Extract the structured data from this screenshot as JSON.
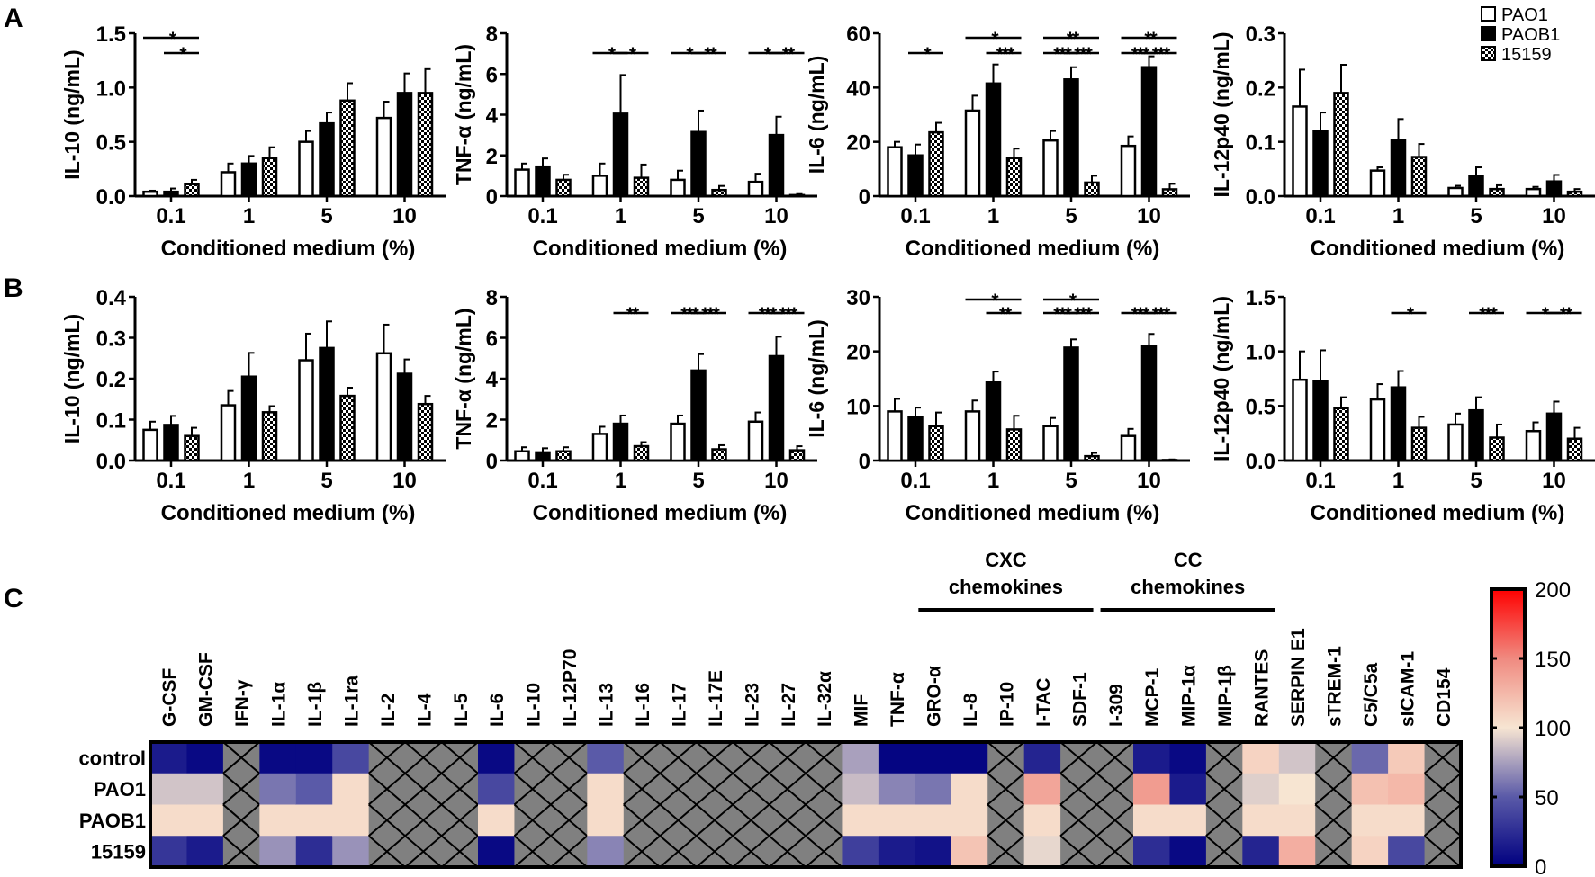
{
  "panels": {
    "a": "A",
    "b": "B",
    "c": "C"
  },
  "legend": [
    {
      "name": "PAO1",
      "fill": "white"
    },
    {
      "name": "PAOB1",
      "fill": "black"
    },
    {
      "name": "15159",
      "fill": "checker"
    }
  ],
  "chart_data": [
    {
      "type": "bar",
      "panel": "A",
      "ylabel": "IL-10 (ng/mL)",
      "xlabel": "Conditioned medium (%)",
      "ylim": [
        0,
        1.5
      ],
      "yticks": [
        "0.0",
        "0.5",
        "1.0",
        "1.5"
      ],
      "categories": [
        "0.1",
        "1",
        "5",
        "10"
      ],
      "series": [
        {
          "name": "PAO1",
          "values": [
            0.04,
            0.22,
            0.5,
            0.72
          ],
          "errors": [
            0.01,
            0.08,
            0.1,
            0.15
          ]
        },
        {
          "name": "PAOB1",
          "values": [
            0.04,
            0.3,
            0.67,
            0.95
          ],
          "errors": [
            0.03,
            0.07,
            0.1,
            0.18
          ]
        },
        {
          "name": "15159",
          "values": [
            0.11,
            0.35,
            0.88,
            0.95
          ],
          "errors": [
            0.04,
            0.1,
            0.16,
            0.22
          ]
        }
      ],
      "significance": [
        {
          "group": 0,
          "bars": [
            0,
            2
          ],
          "label": "*",
          "level": 1
        },
        {
          "group": 0,
          "bars": [
            1,
            2
          ],
          "label": "*",
          "level": 0
        }
      ]
    },
    {
      "type": "bar",
      "panel": "A",
      "ylabel": "TNF-α (ng/mL)",
      "xlabel": "Conditioned medium (%)",
      "ylim": [
        0,
        8
      ],
      "yticks": [
        "0",
        "2",
        "4",
        "6",
        "8"
      ],
      "categories": [
        "0.1",
        "1",
        "5",
        "10"
      ],
      "series": [
        {
          "name": "PAO1",
          "values": [
            1.3,
            1.0,
            0.8,
            0.7
          ],
          "errors": [
            0.3,
            0.6,
            0.45,
            0.4
          ]
        },
        {
          "name": "PAOB1",
          "values": [
            1.45,
            4.05,
            3.15,
            3.0
          ],
          "errors": [
            0.4,
            1.9,
            1.05,
            0.9
          ]
        },
        {
          "name": "15159",
          "values": [
            0.8,
            0.9,
            0.3,
            0.05
          ],
          "errors": [
            0.25,
            0.65,
            0.2,
            0.05
          ]
        }
      ],
      "significance": [
        {
          "group": 1,
          "bars": [
            0,
            1
          ],
          "label": "*",
          "level": 0
        },
        {
          "group": 1,
          "bars": [
            1,
            2
          ],
          "label": "*",
          "level": 0
        },
        {
          "group": 2,
          "bars": [
            0,
            1
          ],
          "label": "*",
          "level": 0
        },
        {
          "group": 2,
          "bars": [
            1,
            2
          ],
          "label": "**",
          "level": 0
        },
        {
          "group": 3,
          "bars": [
            0,
            1
          ],
          "label": "*",
          "level": 0
        },
        {
          "group": 3,
          "bars": [
            1,
            2
          ],
          "label": "**",
          "level": 0
        }
      ]
    },
    {
      "type": "bar",
      "panel": "A",
      "ylabel": "IL-6 (ng/mL)",
      "xlabel": "Conditioned medium (%)",
      "ylim": [
        0,
        60
      ],
      "yticks": [
        "0",
        "20",
        "40",
        "60"
      ],
      "categories": [
        "0.1",
        "1",
        "5",
        "10"
      ],
      "series": [
        {
          "name": "PAO1",
          "values": [
            18,
            31.5,
            20.5,
            18.5
          ],
          "errors": [
            2,
            5.5,
            3.5,
            3.5
          ]
        },
        {
          "name": "PAOB1",
          "values": [
            15,
            41.5,
            43,
            47.5
          ],
          "errors": [
            4,
            7,
            4.5,
            4
          ]
        },
        {
          "name": "15159",
          "values": [
            23.5,
            14,
            5,
            2.5
          ],
          "errors": [
            3.5,
            3.5,
            2.5,
            2
          ]
        }
      ],
      "significance": [
        {
          "group": 0,
          "bars": [
            1,
            2
          ],
          "label": "*",
          "level": 0
        },
        {
          "group": 1,
          "bars": [
            0,
            2
          ],
          "label": "*",
          "level": 1
        },
        {
          "group": 1,
          "bars": [
            1,
            2
          ],
          "label": "***",
          "level": 0
        },
        {
          "group": 2,
          "bars": [
            0,
            2
          ],
          "label": "**",
          "level": 1
        },
        {
          "group": 2,
          "bars": [
            0,
            1
          ],
          "label": "***",
          "level": 0
        },
        {
          "group": 2,
          "bars": [
            1,
            2
          ],
          "label": "***",
          "level": 0
        },
        {
          "group": 3,
          "bars": [
            0,
            2
          ],
          "label": "**",
          "level": 1
        },
        {
          "group": 3,
          "bars": [
            0,
            1
          ],
          "label": "***",
          "level": 0
        },
        {
          "group": 3,
          "bars": [
            1,
            2
          ],
          "label": "***",
          "level": 0
        }
      ]
    },
    {
      "type": "bar",
      "panel": "A",
      "ylabel": "IL-12p40 (ng/mL)",
      "xlabel": "Conditioned medium (%)",
      "ylim": [
        0,
        0.3
      ],
      "yticks": [
        "0.0",
        "0.1",
        "0.2",
        "0.3"
      ],
      "categories": [
        "0.1",
        "1",
        "5",
        "10"
      ],
      "series": [
        {
          "name": "PAO1",
          "values": [
            0.165,
            0.047,
            0.015,
            0.013
          ],
          "errors": [
            0.068,
            0.006,
            0.004,
            0.004
          ]
        },
        {
          "name": "PAOB1",
          "values": [
            0.12,
            0.104,
            0.037,
            0.027
          ],
          "errors": [
            0.034,
            0.038,
            0.016,
            0.012
          ]
        },
        {
          "name": "15159",
          "values": [
            0.19,
            0.072,
            0.013,
            0.008
          ],
          "errors": [
            0.052,
            0.024,
            0.007,
            0.005
          ]
        }
      ],
      "significance": []
    },
    {
      "type": "bar",
      "panel": "B",
      "ylabel": "IL-10 (ng/mL)",
      "xlabel": "Conditioned medium (%)",
      "ylim": [
        0,
        0.4
      ],
      "yticks": [
        "0.0",
        "0.1",
        "0.2",
        "0.3",
        "0.4"
      ],
      "categories": [
        "0.1",
        "1",
        "5",
        "10"
      ],
      "series": [
        {
          "name": "PAO1",
          "values": [
            0.075,
            0.135,
            0.245,
            0.262
          ],
          "errors": [
            0.02,
            0.035,
            0.065,
            0.07
          ]
        },
        {
          "name": "PAOB1",
          "values": [
            0.087,
            0.205,
            0.275,
            0.212
          ],
          "errors": [
            0.022,
            0.058,
            0.065,
            0.035
          ]
        },
        {
          "name": "15159",
          "values": [
            0.06,
            0.118,
            0.158,
            0.138
          ],
          "errors": [
            0.02,
            0.015,
            0.02,
            0.02
          ]
        }
      ],
      "significance": []
    },
    {
      "type": "bar",
      "panel": "B",
      "ylabel": "TNF-α (ng/mL)",
      "xlabel": "Conditioned medium (%)",
      "ylim": [
        0,
        8
      ],
      "yticks": [
        "0",
        "2",
        "4",
        "6",
        "8"
      ],
      "categories": [
        "0.1",
        "1",
        "5",
        "10"
      ],
      "series": [
        {
          "name": "PAO1",
          "values": [
            0.45,
            1.3,
            1.8,
            1.9
          ],
          "errors": [
            0.2,
            0.35,
            0.4,
            0.45
          ]
        },
        {
          "name": "PAOB1",
          "values": [
            0.4,
            1.8,
            4.4,
            5.1
          ],
          "errors": [
            0.2,
            0.4,
            0.8,
            0.95
          ]
        },
        {
          "name": "15159",
          "values": [
            0.45,
            0.7,
            0.55,
            0.5
          ],
          "errors": [
            0.2,
            0.2,
            0.2,
            0.2
          ]
        }
      ],
      "significance": [
        {
          "group": 1,
          "bars": [
            1,
            2
          ],
          "label": "**",
          "level": 0
        },
        {
          "group": 2,
          "bars": [
            0,
            1
          ],
          "label": "***",
          "level": 0
        },
        {
          "group": 2,
          "bars": [
            1,
            2
          ],
          "label": "***",
          "level": 0
        },
        {
          "group": 3,
          "bars": [
            0,
            1
          ],
          "label": "***",
          "level": 0
        },
        {
          "group": 3,
          "bars": [
            1,
            2
          ],
          "label": "***",
          "level": 0
        }
      ]
    },
    {
      "type": "bar",
      "panel": "B",
      "ylabel": "IL-6 (ng/mL)",
      "xlabel": "Conditioned medium (%)",
      "ylim": [
        0,
        30
      ],
      "yticks": [
        "0",
        "10",
        "20",
        "30"
      ],
      "categories": [
        "0.1",
        "1",
        "5",
        "10"
      ],
      "series": [
        {
          "name": "PAO1",
          "values": [
            9,
            9,
            6.3,
            4.5
          ],
          "errors": [
            2.3,
            2,
            1.5,
            1.3
          ]
        },
        {
          "name": "PAOB1",
          "values": [
            8,
            14.3,
            20.7,
            21
          ],
          "errors": [
            1.7,
            2,
            1.5,
            2.2
          ]
        },
        {
          "name": "15159",
          "values": [
            6.3,
            5.7,
            0.8,
            0.1
          ],
          "errors": [
            2.5,
            2.5,
            0.6,
            0.1
          ]
        }
      ],
      "significance": [
        {
          "group": 1,
          "bars": [
            0,
            2
          ],
          "label": "*",
          "level": 1
        },
        {
          "group": 1,
          "bars": [
            1,
            2
          ],
          "label": "**",
          "level": 0
        },
        {
          "group": 2,
          "bars": [
            0,
            2
          ],
          "label": "*",
          "level": 1
        },
        {
          "group": 2,
          "bars": [
            0,
            1
          ],
          "label": "***",
          "level": 0
        },
        {
          "group": 2,
          "bars": [
            1,
            2
          ],
          "label": "***",
          "level": 0
        },
        {
          "group": 3,
          "bars": [
            0,
            1
          ],
          "label": "***",
          "level": 0
        },
        {
          "group": 3,
          "bars": [
            1,
            2
          ],
          "label": "***",
          "level": 0
        }
      ]
    },
    {
      "type": "bar",
      "panel": "B",
      "ylabel": "IL-12p40 (ng/mL)",
      "xlabel": "Conditioned medium (%)",
      "ylim": [
        0,
        1.5
      ],
      "yticks": [
        "0.0",
        "0.5",
        "1.0",
        "1.5"
      ],
      "categories": [
        "0.1",
        "1",
        "5",
        "10"
      ],
      "series": [
        {
          "name": "PAO1",
          "values": [
            0.74,
            0.56,
            0.33,
            0.27
          ],
          "errors": [
            0.26,
            0.14,
            0.1,
            0.08
          ]
        },
        {
          "name": "PAOB1",
          "values": [
            0.73,
            0.67,
            0.46,
            0.43
          ],
          "errors": [
            0.28,
            0.15,
            0.12,
            0.11
          ]
        },
        {
          "name": "15159",
          "values": [
            0.48,
            0.3,
            0.21,
            0.2
          ],
          "errors": [
            0.1,
            0.1,
            0.12,
            0.1
          ]
        }
      ],
      "significance": [
        {
          "group": 1,
          "bars": [
            1,
            2
          ],
          "label": "*",
          "level": 0
        },
        {
          "group": 2,
          "bars": [
            1,
            2
          ],
          "label": "***",
          "level": 0
        },
        {
          "group": 3,
          "bars": [
            0,
            1
          ],
          "label": "*",
          "level": 0
        },
        {
          "group": 3,
          "bars": [
            1,
            2
          ],
          "label": "**",
          "level": 0
        }
      ]
    },
    {
      "type": "heatmap",
      "panel": "C",
      "columns": [
        "G-CSF",
        "GM-CSF",
        "IFN-γ",
        "IL-1α",
        "IL-1β",
        "IL-1ra",
        "IL-2",
        "IL-4",
        "IL-5",
        "IL-6",
        "IL-10",
        "IL-12P70",
        "IL-13",
        "IL-16",
        "IL-17",
        "IL-17E",
        "IL-23",
        "IL-27",
        "IL-32α",
        "MIF",
        "TNF-α",
        "GRO-α",
        "IL-8",
        "IP-10",
        "I-TAC",
        "SDF-1",
        "I-309",
        "MCP-1",
        "MIP-1α",
        "MIP-1β",
        "RANTES",
        "SERPIN E1",
        "sTREM-1",
        "C5/C5a",
        "sICAM-1",
        "CD154"
      ],
      "groups": [
        {
          "label_1": "CXC",
          "label_2": "chemokines",
          "from": "GRO-α",
          "to": "SDF-1"
        },
        {
          "label_1": "CC",
          "label_2": "chemokines",
          "from": "I-309",
          "to": "RANTES"
        }
      ],
      "rows": [
        {
          "name": "control",
          "values": [
            15,
            5,
            null,
            5,
            5,
            40,
            null,
            null,
            null,
            5,
            null,
            null,
            50,
            null,
            null,
            null,
            null,
            null,
            null,
            75,
            3,
            3,
            3,
            null,
            20,
            null,
            null,
            15,
            5,
            null,
            110,
            88,
            null,
            55,
            115,
            null
          ]
        },
        {
          "name": "PAO1",
          "values": [
            88,
            88,
            null,
            60,
            50,
            105,
            null,
            null,
            null,
            40,
            null,
            null,
            105,
            null,
            null,
            null,
            null,
            null,
            null,
            85,
            65,
            60,
            105,
            null,
            135,
            null,
            null,
            140,
            15,
            null,
            92,
            100,
            null,
            120,
            125,
            null
          ]
        },
        {
          "name": "PAOB1",
          "values": [
            105,
            105,
            null,
            105,
            105,
            105,
            null,
            null,
            null,
            105,
            null,
            null,
            105,
            null,
            null,
            null,
            null,
            null,
            null,
            105,
            105,
            105,
            105,
            null,
            105,
            null,
            null,
            105,
            105,
            null,
            105,
            105,
            null,
            105,
            105,
            null
          ]
        },
        {
          "name": "15159",
          "values": [
            30,
            15,
            null,
            70,
            25,
            70,
            null,
            null,
            null,
            5,
            null,
            null,
            65,
            null,
            null,
            null,
            null,
            null,
            null,
            35,
            15,
            10,
            118,
            null,
            95,
            null,
            null,
            25,
            5,
            null,
            20,
            130,
            null,
            110,
            40,
            null
          ]
        }
      ],
      "colorbar": {
        "min": 0,
        "max": 200,
        "ticks": [
          "0",
          "50",
          "100",
          "150",
          "200"
        ],
        "colors": [
          "#000080",
          "#5a5aa8",
          "#f7e5d2",
          "#f08a80",
          "#ff0000"
        ]
      },
      "missing_color": "#808080"
    }
  ]
}
